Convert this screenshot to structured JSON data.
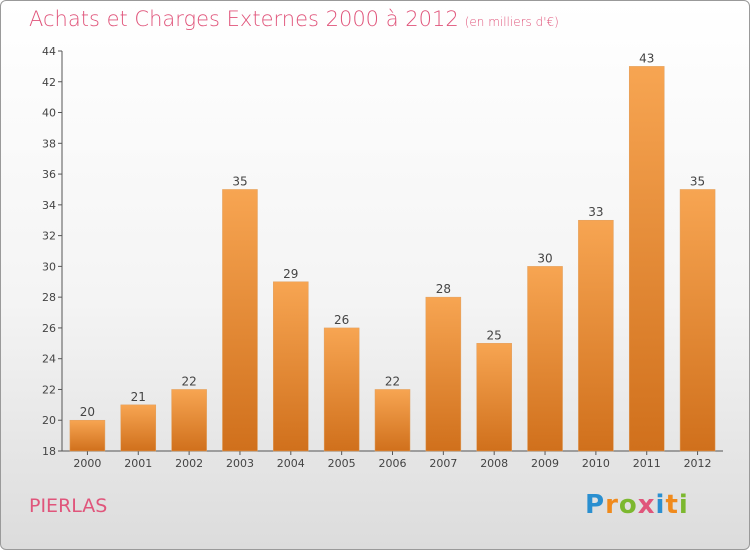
{
  "header": {
    "title": "Achats et Charges Externes 2000 à 2012",
    "unit": "(en milliers d'€)"
  },
  "footer": {
    "commune": "PIERLAS",
    "brand": "Proxiti",
    "brand_letters": [
      {
        "char": "P",
        "color": "#2a8fd0"
      },
      {
        "char": "r",
        "color": "#f08a1c"
      },
      {
        "char": "o",
        "color": "#7cb82f"
      },
      {
        "char": "x",
        "color": "#e0557b"
      },
      {
        "char": "i",
        "color": "#2a8fd0"
      },
      {
        "char": "t",
        "color": "#f08a1c"
      },
      {
        "char": "i",
        "color": "#7cb82f"
      }
    ]
  },
  "colors": {
    "title": "#e0557b",
    "bar_light": "#f7a552",
    "bar_dark": "#d0701c",
    "axis": "#555555",
    "grid": "#c8c8c8"
  },
  "chart_data": {
    "type": "bar",
    "title": "Achats et Charges Externes 2000 à 2012",
    "subtitle": "(en milliers d'€)",
    "xlabel": "",
    "ylabel": "",
    "categories": [
      "2000",
      "2001",
      "2002",
      "2003",
      "2004",
      "2005",
      "2006",
      "2007",
      "2008",
      "2009",
      "2010",
      "2011",
      "2012"
    ],
    "values": [
      20,
      21,
      22,
      35,
      29,
      26,
      22,
      28,
      25,
      30,
      33,
      43,
      35
    ],
    "ylim": [
      18,
      44
    ],
    "yticks": [
      18,
      20,
      22,
      24,
      26,
      28,
      30,
      32,
      34,
      36,
      38,
      40,
      42,
      44
    ],
    "grid": false,
    "legend": "none"
  }
}
